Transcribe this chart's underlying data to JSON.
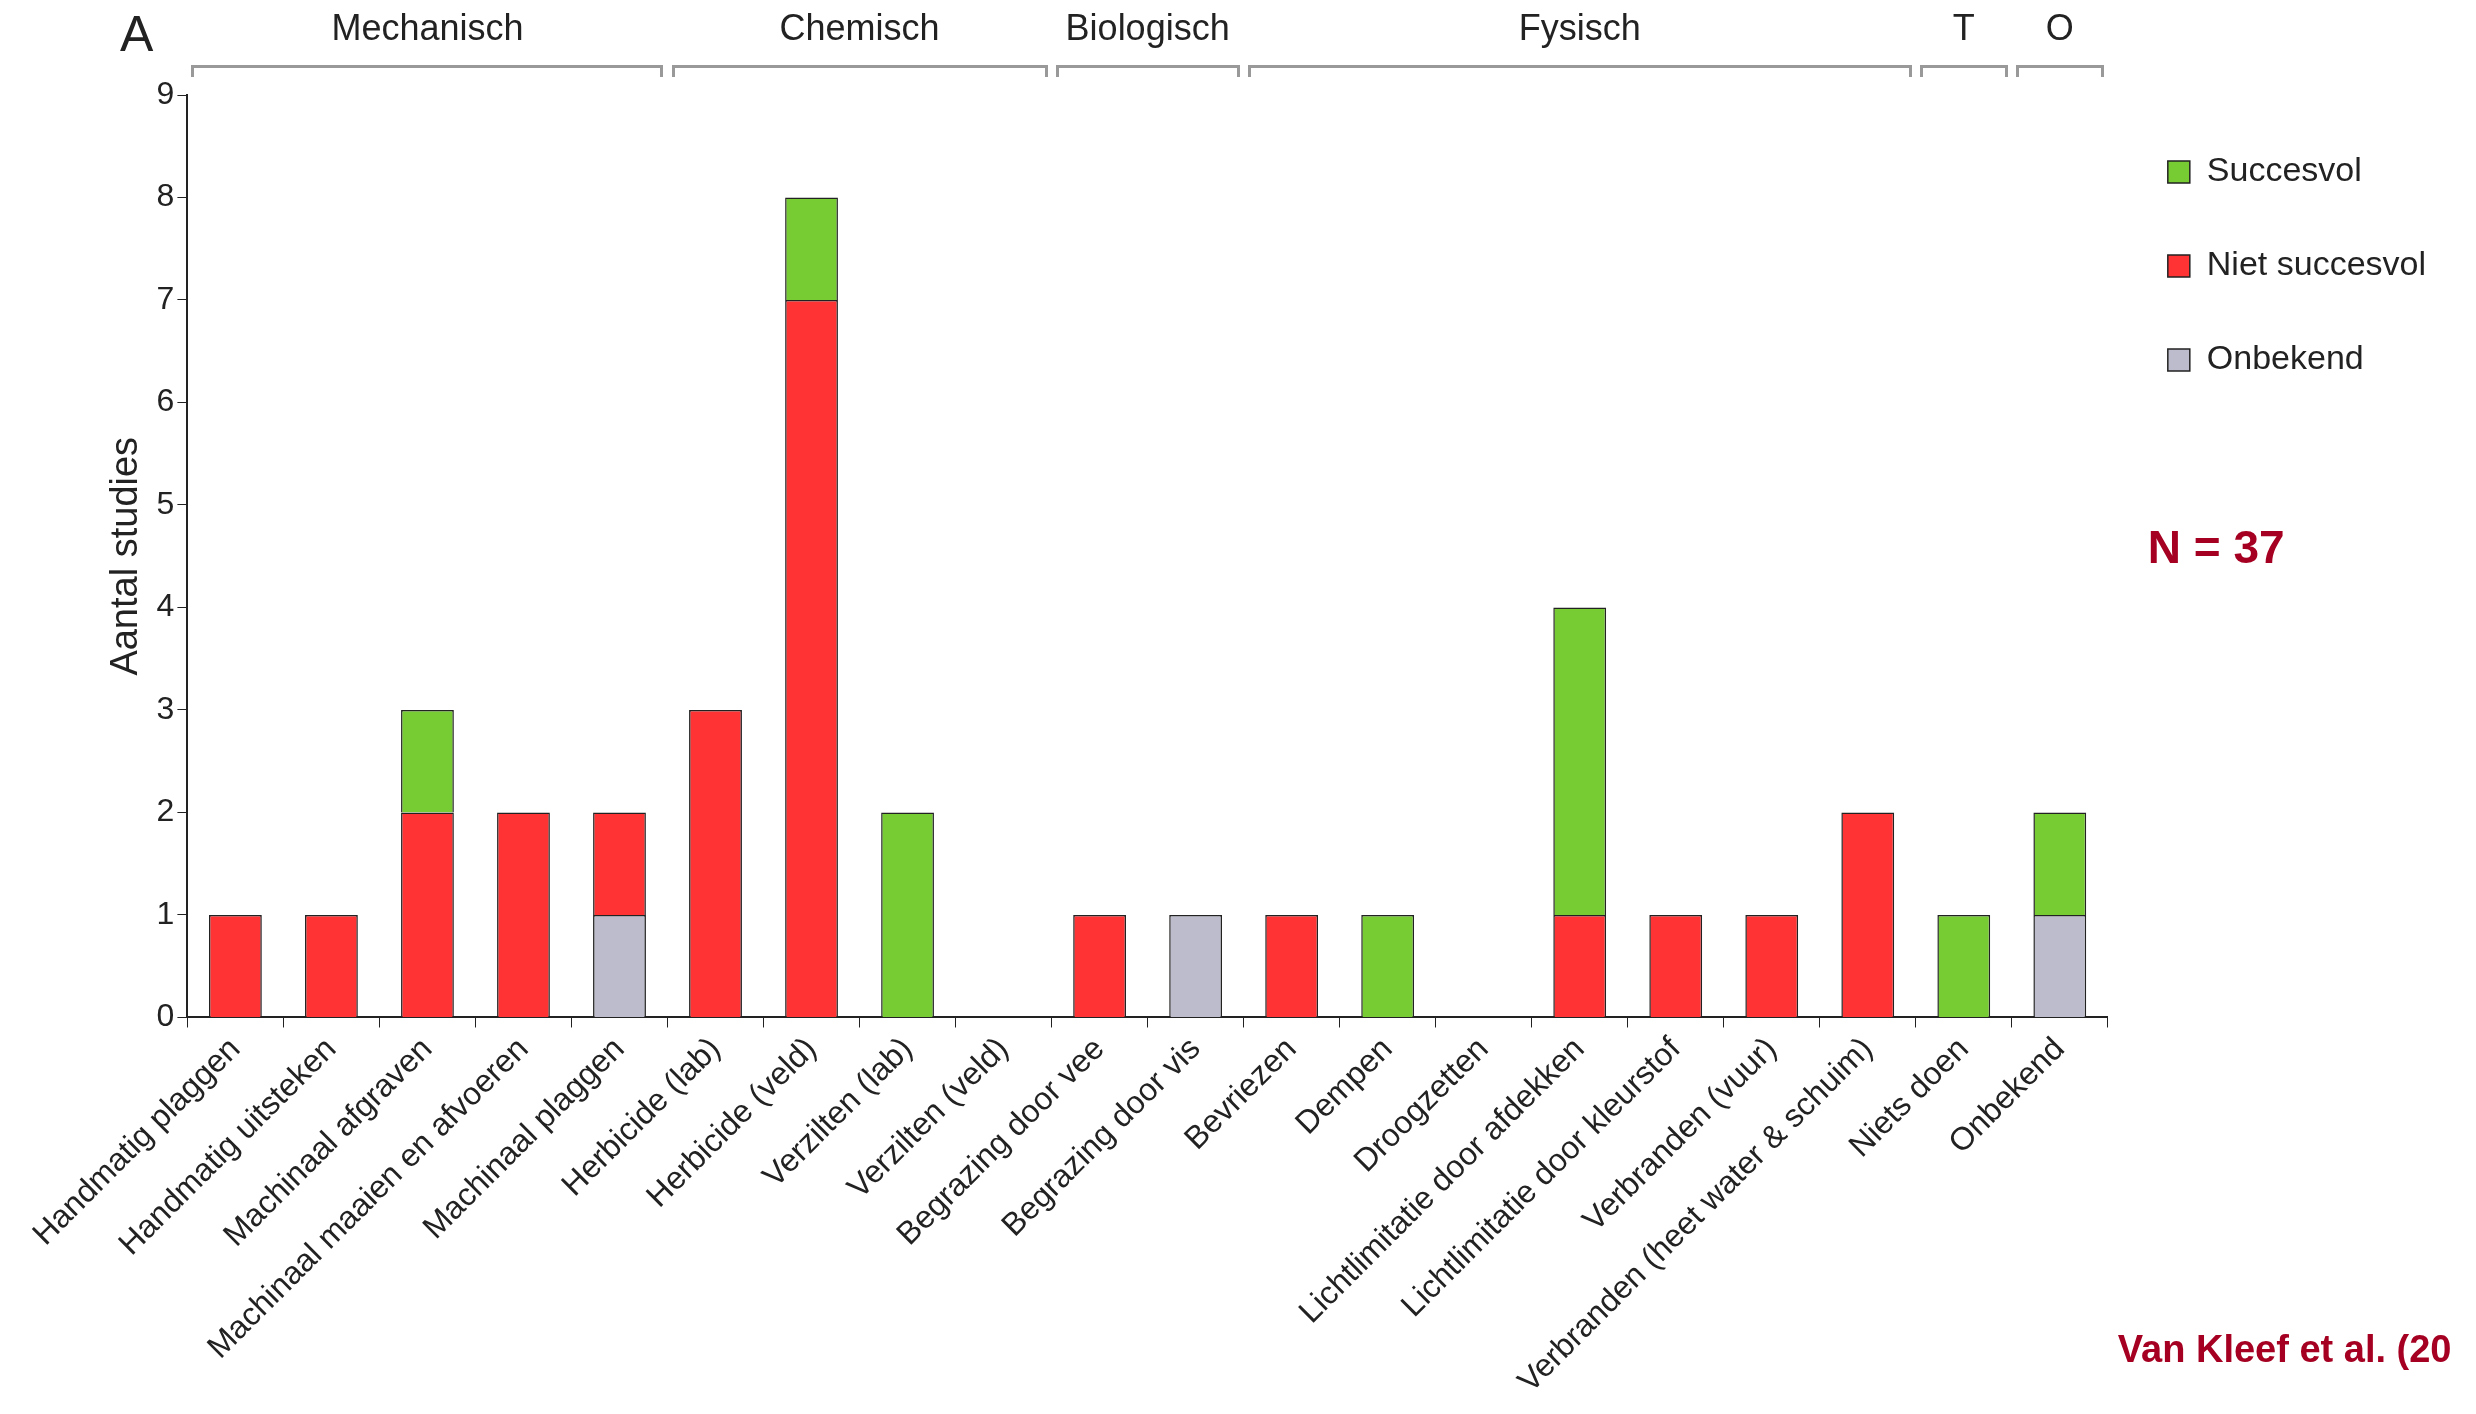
{
  "chart_data": {
    "type": "bar",
    "stacked": true,
    "ylabel": "Aantal studies",
    "categories": [
      "Handmatig plaggen",
      "Handmatig uitsteken",
      "Machinaal afgraven",
      "Machinaal maaien en afvoeren",
      "Machinaal plaggen",
      "Herbicide (lab)",
      "Herbicide (veld)",
      "Verzilten (lab)",
      "Verzilten (veld)",
      "Begrazing door vee",
      "Begrazing door vis",
      "Bevriezen",
      "Dempen",
      "Droogzetten",
      "Lichtlimitatie door afdekken",
      "Lichtlimitatie door kleurstof",
      "Verbranden (vuur)",
      "Verbranden (heet water & schuim)",
      "Niets doen",
      "Onbekend"
    ],
    "series": [
      {
        "name": "Onbekend",
        "color": "#bcbccc",
        "values": [
          0,
          0,
          0,
          0,
          1,
          0,
          0,
          0,
          0,
          0,
          1,
          0,
          0,
          0,
          0,
          0,
          0,
          0,
          0,
          1
        ]
      },
      {
        "name": "Niet succesvol",
        "color": "#ff3333",
        "values": [
          1,
          1,
          2,
          2,
          1,
          3,
          7,
          0,
          0,
          1,
          0,
          1,
          0,
          0,
          1,
          1,
          1,
          2,
          0,
          0
        ]
      },
      {
        "name": "Succesvol",
        "color": "#77cc33",
        "values": [
          0,
          0,
          1,
          0,
          0,
          0,
          1,
          2,
          0,
          0,
          0,
          0,
          1,
          0,
          3,
          0,
          0,
          0,
          1,
          1
        ]
      }
    ],
    "ylim": [
      0,
      9
    ],
    "yticks": [
      0,
      1,
      2,
      3,
      4,
      5,
      6,
      7,
      8,
      9
    ],
    "grid": false,
    "legend": "right",
    "annotations": [
      "A",
      "Mechanisch",
      "Chemisch",
      "Biologisch",
      "Fysisch",
      "T",
      "O",
      "N = 37",
      "Van Kleef et al. (20"
    ]
  }
}
